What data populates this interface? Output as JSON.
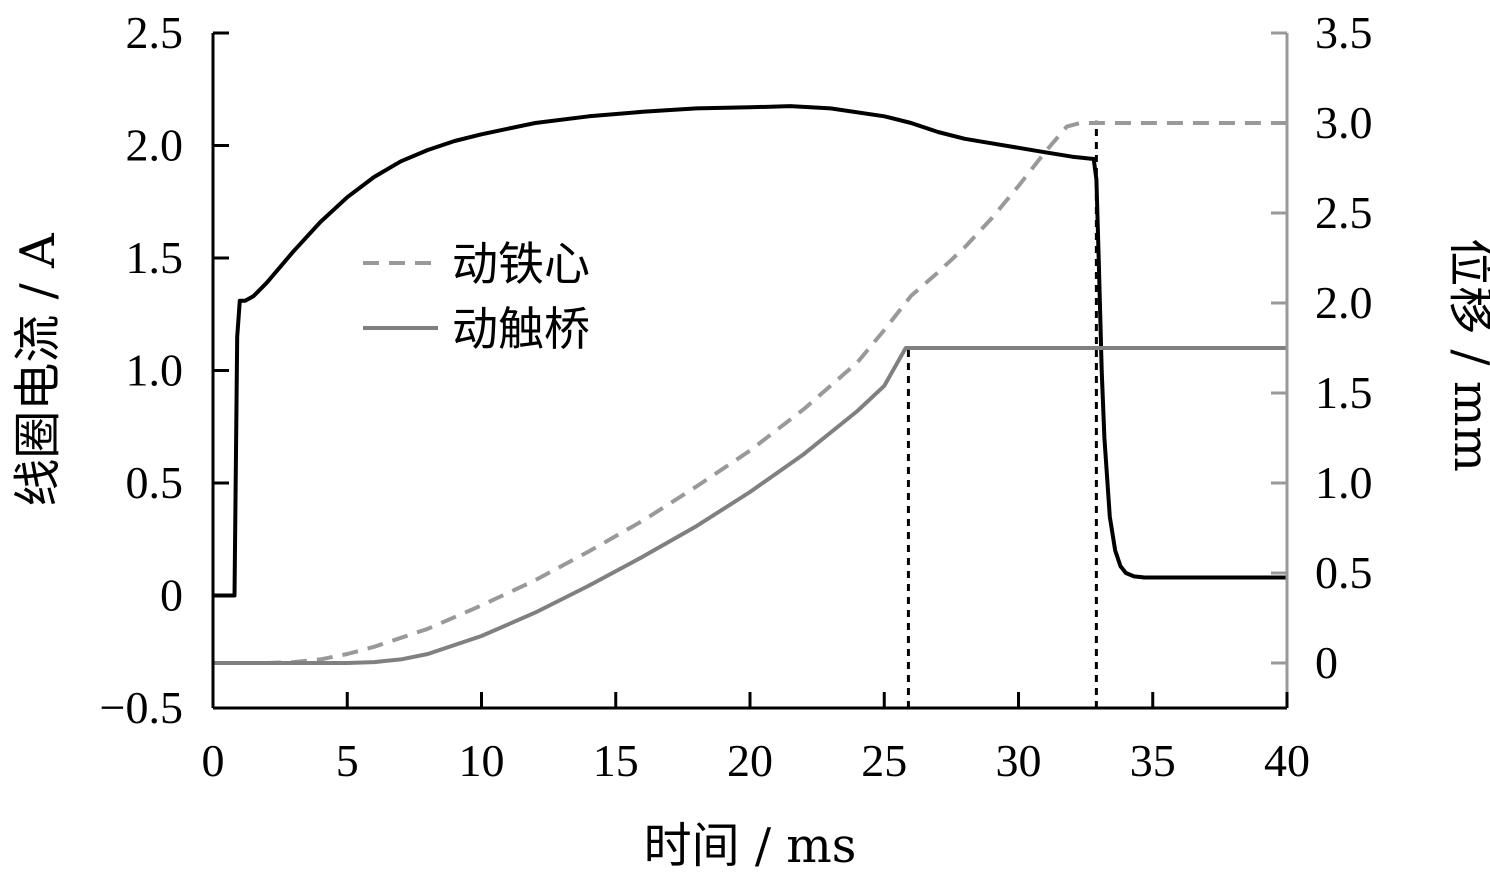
{
  "chart_data": {
    "type": "line",
    "xlabel": "时间 / ms",
    "ylabel_left": "线圈电流 / A",
    "ylabel_right": "位移 / mm",
    "xlim": [
      0,
      40
    ],
    "ylim_left": [
      -0.5,
      2.5
    ],
    "ylim_right": [
      -0.25,
      3.5
    ],
    "x_ticks": [
      0,
      5,
      10,
      15,
      20,
      25,
      30,
      35,
      40
    ],
    "x_tick_labels": [
      "0",
      "5",
      "10",
      "15",
      "20",
      "25",
      "30",
      "35",
      "40"
    ],
    "y_left_ticks": [
      -0.5,
      0,
      0.5,
      1.0,
      1.5,
      2.0,
      2.5
    ],
    "y_left_tick_labels": [
      "−0.5",
      "0",
      "0.5",
      "1.0",
      "1.5",
      "2.0",
      "2.5"
    ],
    "y_right_ticks": [
      0,
      0.5,
      1.0,
      1.5,
      2.0,
      2.5,
      3.0,
      3.5
    ],
    "y_right_tick_labels": [
      "0",
      "0.5",
      "1.0",
      "1.5",
      "2.0",
      "2.5",
      "3.0",
      "3.5"
    ],
    "legend": {
      "placement": "center-left",
      "entries": [
        {
          "label": "动铁心",
          "style": "dashed",
          "color": "#999999"
        },
        {
          "label": "动触桥",
          "style": "solid",
          "color": "#808080"
        }
      ]
    },
    "series": [
      {
        "key": "coil-current",
        "axis": "left",
        "style": "solid",
        "color": "#000000",
        "x": [
          0,
          0.8,
          0.9,
          1.0,
          1.2,
          1.5,
          2,
          3,
          4,
          5,
          6,
          7,
          8,
          9,
          10,
          12,
          14,
          16,
          18,
          20,
          21.5,
          23,
          25,
          26,
          27,
          28,
          29,
          30,
          31,
          32,
          32.8,
          32.9,
          33.0,
          33.1,
          33.2,
          33.4,
          33.6,
          33.8,
          34.0,
          34.3,
          34.7,
          35,
          40
        ],
        "y": [
          0,
          0,
          1.15,
          1.31,
          1.31,
          1.33,
          1.39,
          1.53,
          1.66,
          1.77,
          1.86,
          1.93,
          1.98,
          2.02,
          2.05,
          2.1,
          2.13,
          2.15,
          2.165,
          2.17,
          2.175,
          2.165,
          2.13,
          2.1,
          2.06,
          2.03,
          2.01,
          1.99,
          1.97,
          1.95,
          1.94,
          1.85,
          1.45,
          1.0,
          0.7,
          0.35,
          0.2,
          0.13,
          0.1,
          0.085,
          0.08,
          0.08,
          0.08
        ]
      },
      {
        "key": "moving-core",
        "axis": "right",
        "style": "dashed",
        "color": "#999999",
        "x": [
          0,
          2,
          3,
          4,
          5,
          6,
          8,
          10,
          12,
          14,
          16,
          18,
          20,
          22,
          24,
          25,
          26,
          27,
          28,
          29,
          30,
          31,
          31.8,
          32.3,
          33,
          40
        ],
        "y": [
          0,
          0,
          0.005,
          0.02,
          0.05,
          0.09,
          0.19,
          0.32,
          0.46,
          0.62,
          0.79,
          0.98,
          1.18,
          1.41,
          1.67,
          1.85,
          2.04,
          2.17,
          2.31,
          2.47,
          2.65,
          2.84,
          2.98,
          3.0,
          3.0,
          3.0
        ]
      },
      {
        "key": "moving-bridge",
        "axis": "right",
        "style": "solid",
        "color": "#808080",
        "x": [
          0,
          4,
          5,
          6,
          7,
          8,
          10,
          12,
          14,
          16,
          18,
          20,
          22,
          24,
          25,
          25.8,
          26,
          40
        ],
        "y": [
          0,
          0,
          0,
          0.005,
          0.02,
          0.05,
          0.15,
          0.28,
          0.43,
          0.59,
          0.76,
          0.95,
          1.16,
          1.4,
          1.54,
          1.75,
          1.75,
          1.75
        ]
      }
    ],
    "annotations": [
      {
        "type": "vline",
        "style": "dotted",
        "x": 25.9,
        "y_from": -0.5,
        "y_to": 1.1,
        "axis": "left"
      },
      {
        "type": "vline",
        "style": "dotted",
        "x": 32.9,
        "y_from": -0.5,
        "y_to": 2.11,
        "axis": "left"
      }
    ]
  }
}
